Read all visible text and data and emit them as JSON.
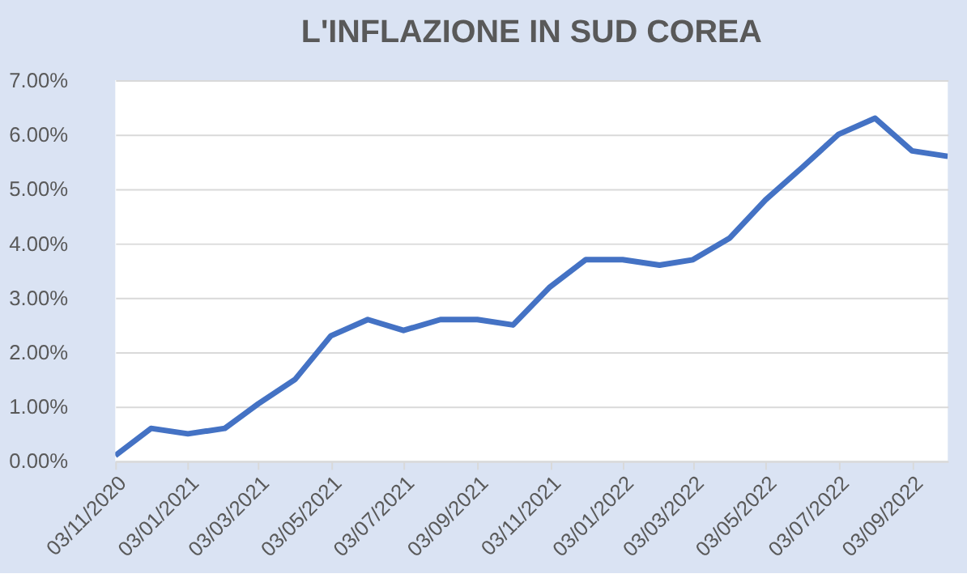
{
  "chart_data": {
    "type": "line",
    "title": "L'INFLAZIONE IN SUD COREA",
    "x": [
      "2020-11-03",
      "2020-12-03",
      "2021-01-03",
      "2021-02-03",
      "2021-03-03",
      "2021-04-03",
      "2021-05-03",
      "2021-06-03",
      "2021-07-03",
      "2021-08-03",
      "2021-09-03",
      "2021-10-03",
      "2021-11-03",
      "2021-12-03",
      "2022-01-03",
      "2022-02-03",
      "2022-03-03",
      "2022-04-03",
      "2022-05-03",
      "2022-06-03",
      "2022-07-03",
      "2022-08-03",
      "2022-09-03",
      "2022-10-03"
    ],
    "series": [
      {
        "color": "#4472c4",
        "values": [
          0.1,
          0.6,
          0.5,
          0.6,
          1.05,
          1.5,
          2.3,
          2.6,
          2.4,
          2.6,
          2.6,
          2.5,
          3.2,
          3.7,
          3.7,
          3.6,
          3.7,
          4.1,
          4.8,
          5.4,
          6.0,
          6.3,
          5.7,
          5.6
        ]
      }
    ],
    "xlim": [
      "2020-11-03",
      "2022-10-03"
    ],
    "xticks": [
      {
        "value": "2020-11-03",
        "label": "03/11/2020"
      },
      {
        "value": "2021-01-03",
        "label": "03/01/2021"
      },
      {
        "value": "2021-03-03",
        "label": "03/03/2021"
      },
      {
        "value": "2021-05-03",
        "label": "03/05/2021"
      },
      {
        "value": "2021-07-03",
        "label": "03/07/2021"
      },
      {
        "value": "2021-09-03",
        "label": "03/09/2021"
      },
      {
        "value": "2021-11-03",
        "label": "03/11/2021"
      },
      {
        "value": "2022-01-03",
        "label": "03/01/2022"
      },
      {
        "value": "2022-03-03",
        "label": "03/03/2022"
      },
      {
        "value": "2022-05-03",
        "label": "03/05/2022"
      },
      {
        "value": "2022-07-03",
        "label": "03/07/2022"
      },
      {
        "value": "2022-09-03",
        "label": "03/09/2022"
      }
    ],
    "ylim": [
      0,
      7
    ],
    "yticks": [
      {
        "value": 0,
        "label": "0.00%"
      },
      {
        "value": 1,
        "label": "1.00%"
      },
      {
        "value": 2,
        "label": "2.00%"
      },
      {
        "value": 3,
        "label": "3.00%"
      },
      {
        "value": 4,
        "label": "4.00%"
      },
      {
        "value": 5,
        "label": "5.00%"
      },
      {
        "value": 6,
        "label": "6.00%"
      },
      {
        "value": 7,
        "label": "7.00%"
      }
    ],
    "grid": "y",
    "legend": false,
    "marker": "none",
    "line_style": "solid"
  }
}
